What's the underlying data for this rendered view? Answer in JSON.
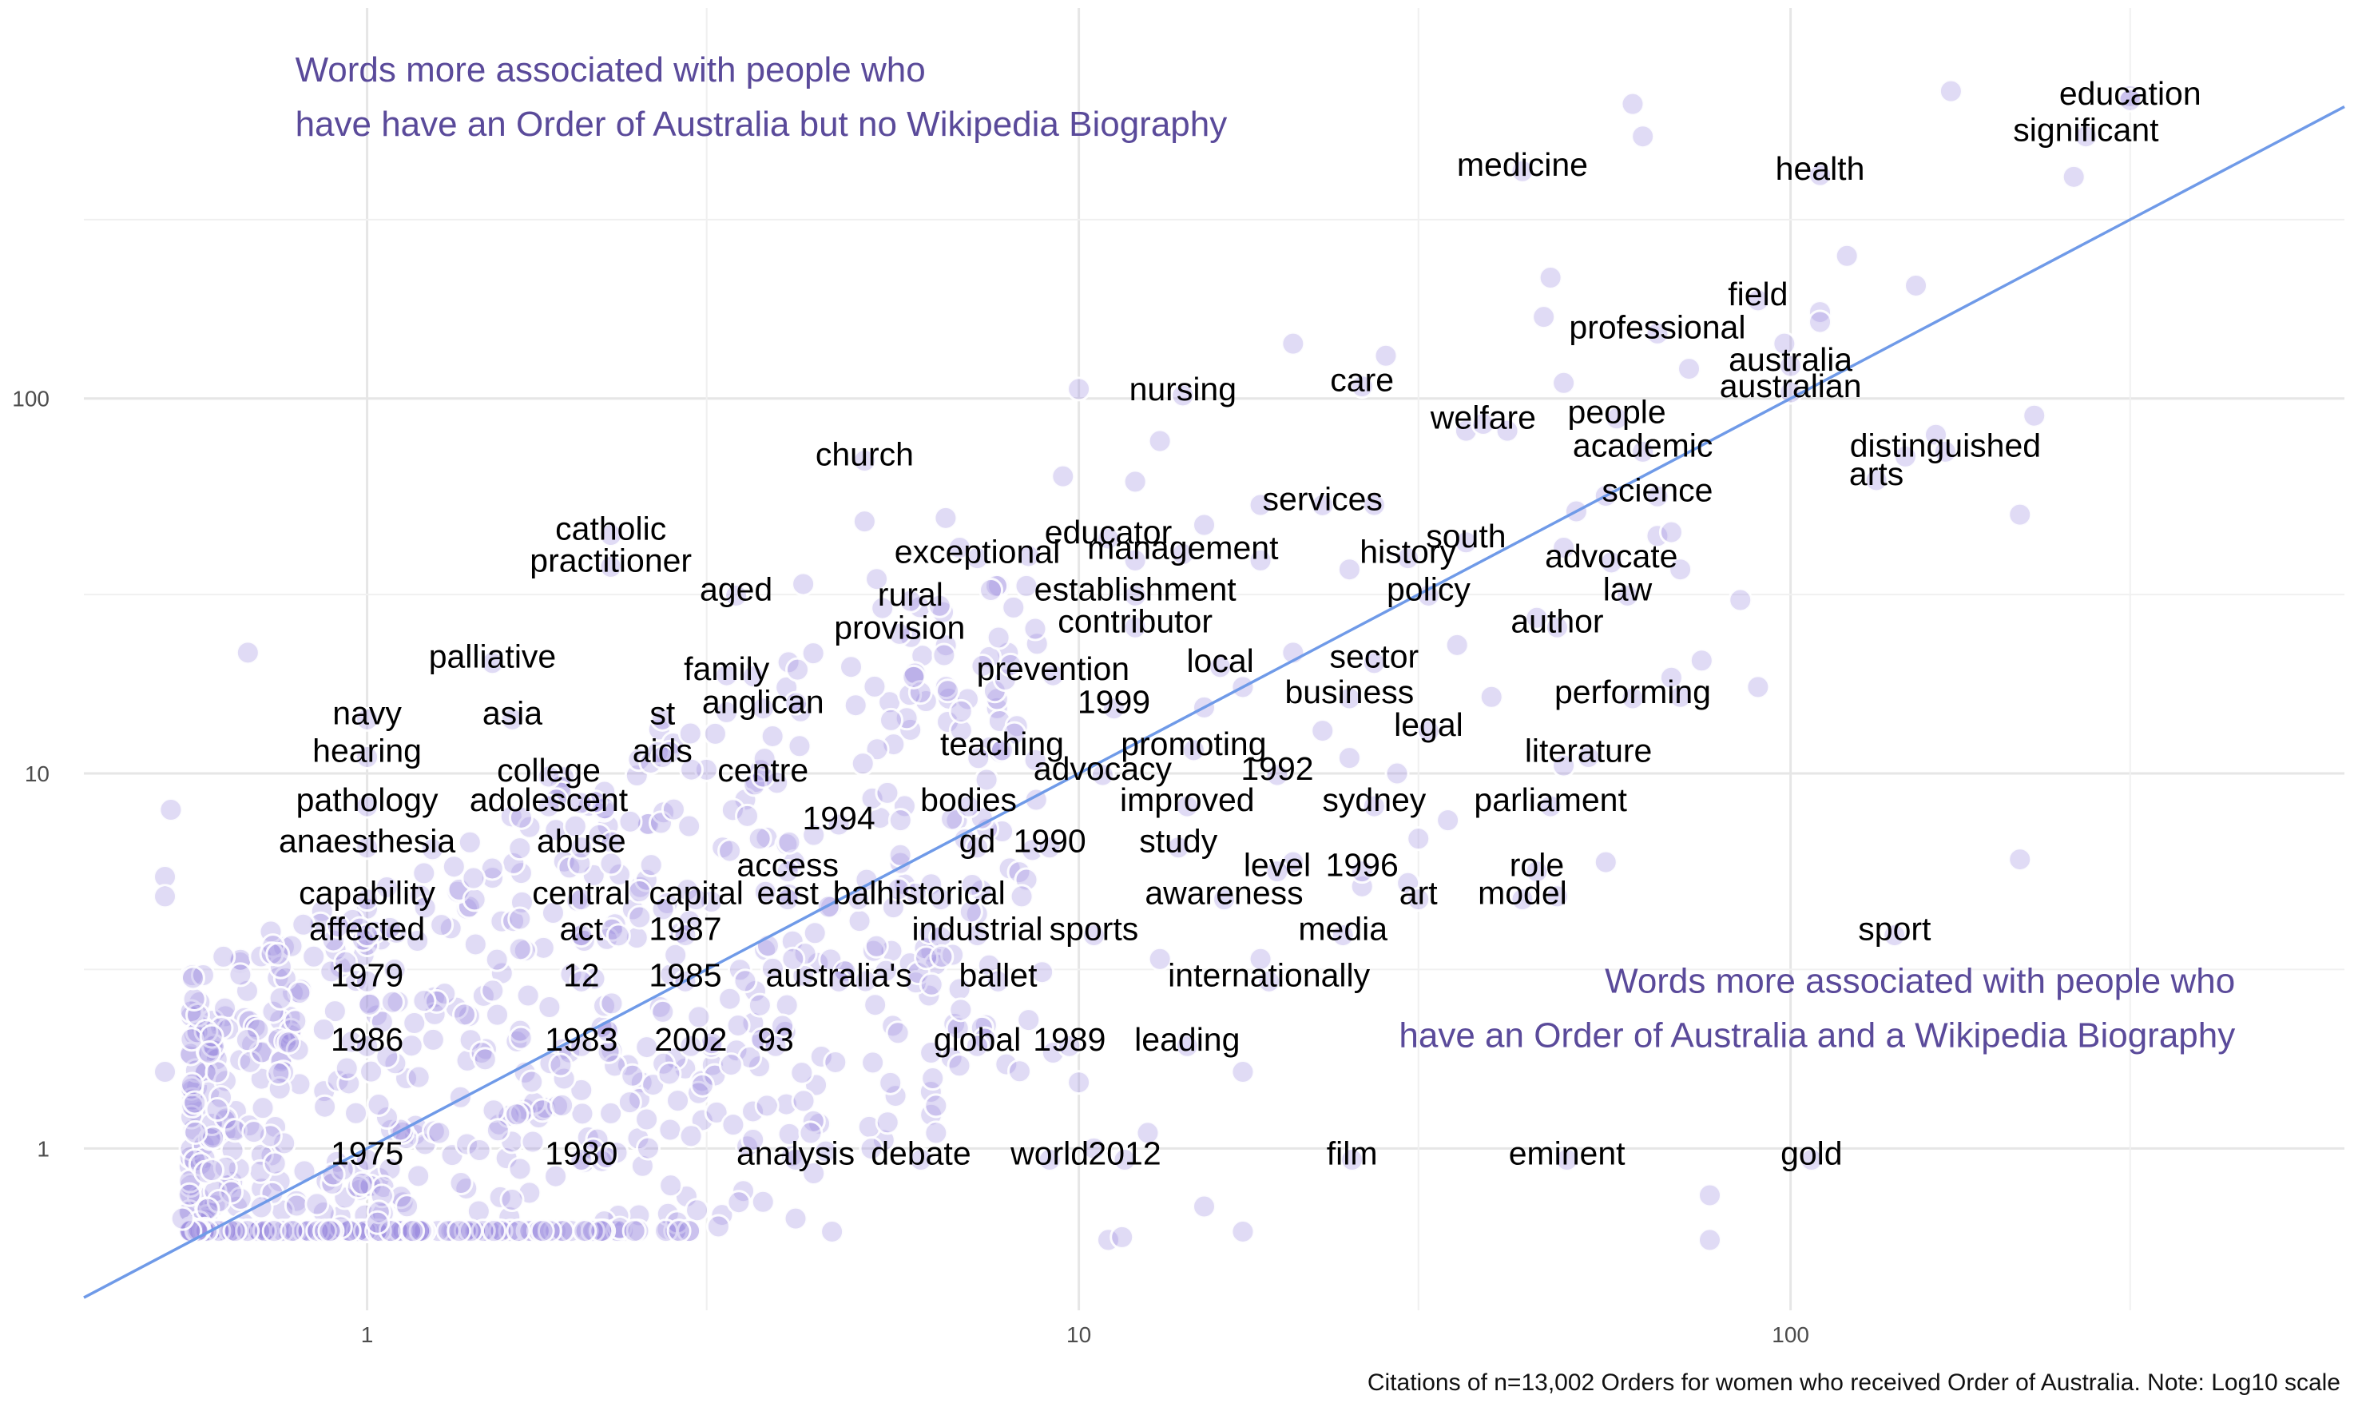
{
  "chart_data": {
    "type": "scatter",
    "x_scale": "log10",
    "y_scale": "log10",
    "xlim": [
      0.4,
      600
    ],
    "ylim": [
      0.37,
      1100
    ],
    "x_ticks": [
      {
        "value": 1,
        "label": "1"
      },
      {
        "value": 10,
        "label": "10"
      },
      {
        "value": 100,
        "label": "100"
      }
    ],
    "y_ticks": [
      {
        "value": 1,
        "label": "1"
      },
      {
        "value": 10,
        "label": "10"
      },
      {
        "value": 100,
        "label": "100"
      }
    ],
    "grid": true,
    "reference_line": "y = x",
    "point_color": "#9e8ee0",
    "line_color": "#6f9ae8",
    "annotation_color": "#5a4a9a",
    "annotations": [
      {
        "lines": [
          "Words more associated with people who",
          "have have an Order of Australia but no Wikipedia Biography"
        ],
        "anchor": [
          1.0,
          700
        ],
        "align": "start"
      },
      {
        "lines": [
          "Words more associated with people who",
          "have an Order of Australia and a Wikipedia Biography"
        ],
        "anchor": [
          380,
          2.6
        ],
        "align": "end"
      }
    ],
    "caption": "Citations of n=13,002 Orders for women who received Order of Australia. Note: Log10 scale",
    "labeled_points": [
      {
        "label": "education",
        "x": 300,
        "y": 650
      },
      {
        "label": "significant",
        "x": 260,
        "y": 520
      },
      {
        "label": "medicine",
        "x": 42,
        "y": 420
      },
      {
        "label": "health",
        "x": 110,
        "y": 410
      },
      {
        "label": "field",
        "x": 90,
        "y": 190
      },
      {
        "label": "professional",
        "x": 65,
        "y": 155
      },
      {
        "label": "australia",
        "x": 100,
        "y": 127
      },
      {
        "label": "australian",
        "x": 100,
        "y": 108
      },
      {
        "label": "nursing",
        "x": 14,
        "y": 106
      },
      {
        "label": "care",
        "x": 25,
        "y": 112
      },
      {
        "label": "welfare",
        "x": 37,
        "y": 89
      },
      {
        "label": "people",
        "x": 57,
        "y": 92
      },
      {
        "label": "academic",
        "x": 62,
        "y": 75
      },
      {
        "label": "distinguished",
        "x": 165,
        "y": 75
      },
      {
        "label": "arts",
        "x": 132,
        "y": 63
      },
      {
        "label": "church",
        "x": 5.0,
        "y": 71
      },
      {
        "label": "science",
        "x": 65,
        "y": 57
      },
      {
        "label": "services",
        "x": 22,
        "y": 54
      },
      {
        "label": "catholic",
        "x": 2.2,
        "y": 45
      },
      {
        "label": "educator",
        "x": 11,
        "y": 44
      },
      {
        "label": "south",
        "x": 35,
        "y": 43
      },
      {
        "label": "practitioner",
        "x": 2.2,
        "y": 37
      },
      {
        "label": "exceptional",
        "x": 7.2,
        "y": 39
      },
      {
        "label": "management",
        "x": 14,
        "y": 40
      },
      {
        "label": "history",
        "x": 29,
        "y": 39
      },
      {
        "label": "advocate",
        "x": 56,
        "y": 38
      },
      {
        "label": "aged",
        "x": 3.3,
        "y": 31
      },
      {
        "label": "rural",
        "x": 5.8,
        "y": 30
      },
      {
        "label": "establishment",
        "x": 12,
        "y": 31
      },
      {
        "label": "policy",
        "x": 31,
        "y": 31
      },
      {
        "label": "law",
        "x": 59,
        "y": 31
      },
      {
        "label": "provision",
        "x": 5.6,
        "y": 24.5
      },
      {
        "label": "contributor",
        "x": 12,
        "y": 25.5
      },
      {
        "label": "author",
        "x": 47,
        "y": 25.5
      },
      {
        "label": "palliative",
        "x": 1.5,
        "y": 20.5
      },
      {
        "label": "family",
        "x": 3.2,
        "y": 19
      },
      {
        "label": "prevention",
        "x": 9.2,
        "y": 19
      },
      {
        "label": "local",
        "x": 15.8,
        "y": 20
      },
      {
        "label": "sector",
        "x": 26,
        "y": 20.5
      },
      {
        "label": "performing",
        "x": 60,
        "y": 16.5
      },
      {
        "label": "navy",
        "x": 1.0,
        "y": 14.5
      },
      {
        "label": "asia",
        "x": 1.6,
        "y": 14.5
      },
      {
        "label": "st",
        "x": 2.6,
        "y": 14.5
      },
      {
        "label": "anglican",
        "x": 3.6,
        "y": 15.5
      },
      {
        "label": "1999",
        "x": 11.2,
        "y": 15.5
      },
      {
        "label": "business",
        "x": 24,
        "y": 16.5
      },
      {
        "label": "legal",
        "x": 31,
        "y": 13.5
      },
      {
        "label": "hearing",
        "x": 1.0,
        "y": 11.5
      },
      {
        "label": "aids",
        "x": 2.6,
        "y": 11.5
      },
      {
        "label": "teaching",
        "x": 7.8,
        "y": 12
      },
      {
        "label": "promoting",
        "x": 14.5,
        "y": 12
      },
      {
        "label": "literature",
        "x": 52,
        "y": 11.5
      },
      {
        "label": "college",
        "x": 1.8,
        "y": 10.2
      },
      {
        "label": "centre",
        "x": 3.6,
        "y": 10.2
      },
      {
        "label": "advocacy",
        "x": 10.8,
        "y": 10.3
      },
      {
        "label": "1992",
        "x": 19,
        "y": 10.3
      },
      {
        "label": "pathology",
        "x": 1.0,
        "y": 8.5
      },
      {
        "label": "adolescent",
        "x": 1.8,
        "y": 8.5
      },
      {
        "label": "bodies",
        "x": 7,
        "y": 8.5
      },
      {
        "label": "improved",
        "x": 14.2,
        "y": 8.5
      },
      {
        "label": "sydney",
        "x": 26,
        "y": 8.5
      },
      {
        "label": "parliament",
        "x": 46,
        "y": 8.5
      },
      {
        "label": "1994",
        "x": 4.6,
        "y": 7.6
      },
      {
        "label": "anaesthesia",
        "x": 1.0,
        "y": 6.6
      },
      {
        "label": "abuse",
        "x": 2.0,
        "y": 6.6
      },
      {
        "label": "gd",
        "x": 7.2,
        "y": 6.6
      },
      {
        "label": "1990",
        "x": 9.1,
        "y": 6.6
      },
      {
        "label": "study",
        "x": 13.8,
        "y": 6.6
      },
      {
        "label": "access",
        "x": 3.9,
        "y": 5.7
      },
      {
        "label": "level",
        "x": 19,
        "y": 5.7
      },
      {
        "label": "1996",
        "x": 25,
        "y": 5.7
      },
      {
        "label": "role",
        "x": 44,
        "y": 5.7
      },
      {
        "label": "capability",
        "x": 1.0,
        "y": 4.8
      },
      {
        "label": "central",
        "x": 2.0,
        "y": 4.8
      },
      {
        "label": "capital",
        "x": 2.9,
        "y": 4.8
      },
      {
        "label": "east",
        "x": 3.9,
        "y": 4.8
      },
      {
        "label": "bali",
        "x": 4.9,
        "y": 4.8
      },
      {
        "label": "historical",
        "x": 6.4,
        "y": 4.8
      },
      {
        "label": "awareness",
        "x": 16,
        "y": 4.8
      },
      {
        "label": "art",
        "x": 30,
        "y": 4.8
      },
      {
        "label": "model",
        "x": 42,
        "y": 4.8
      },
      {
        "label": "affected",
        "x": 1.0,
        "y": 3.85
      },
      {
        "label": "act",
        "x": 2.0,
        "y": 3.85
      },
      {
        "label": "1987",
        "x": 2.8,
        "y": 3.85
      },
      {
        "label": "industrial",
        "x": 7.2,
        "y": 3.85
      },
      {
        "label": "sports",
        "x": 10.5,
        "y": 3.85
      },
      {
        "label": "media",
        "x": 23.5,
        "y": 3.85
      },
      {
        "label": "sport",
        "x": 140,
        "y": 3.85
      },
      {
        "label": "1979",
        "x": 1.0,
        "y": 2.9
      },
      {
        "label": "12",
        "x": 2.0,
        "y": 2.9
      },
      {
        "label": "1985",
        "x": 2.8,
        "y": 2.9
      },
      {
        "label": "australia's",
        "x": 4.6,
        "y": 2.9
      },
      {
        "label": "ballet",
        "x": 7.7,
        "y": 2.9
      },
      {
        "label": "internationally",
        "x": 18.5,
        "y": 2.9
      },
      {
        "label": "1986",
        "x": 1.0,
        "y": 1.95
      },
      {
        "label": "1983",
        "x": 2.0,
        "y": 1.95
      },
      {
        "label": "2002",
        "x": 2.85,
        "y": 1.95
      },
      {
        "label": "93",
        "x": 3.75,
        "y": 1.95
      },
      {
        "label": "global",
        "x": 7.2,
        "y": 1.95
      },
      {
        "label": "1989",
        "x": 9.7,
        "y": 1.95
      },
      {
        "label": "leading",
        "x": 14.2,
        "y": 1.95
      },
      {
        "label": "1975",
        "x": 1.0,
        "y": 0.97
      },
      {
        "label": "1980",
        "x": 2.0,
        "y": 0.97
      },
      {
        "label": "analysis",
        "x": 4.0,
        "y": 0.97
      },
      {
        "label": "debate",
        "x": 6.0,
        "y": 0.97
      },
      {
        "label": "world",
        "x": 9.1,
        "y": 0.97
      },
      {
        "label": "2012",
        "x": 11.6,
        "y": 0.97
      },
      {
        "label": "film",
        "x": 24.2,
        "y": 0.97
      },
      {
        "label": "eminent",
        "x": 48.5,
        "y": 0.97
      },
      {
        "label": "gold",
        "x": 107,
        "y": 0.97
      }
    ],
    "highlight_points": [
      [
        168,
        660
      ],
      [
        300,
        640
      ],
      [
        60,
        610
      ],
      [
        62,
        500
      ],
      [
        250,
        390
      ],
      [
        120,
        240
      ],
      [
        150,
        200
      ],
      [
        46,
        210
      ],
      [
        45,
        165
      ],
      [
        27,
        130
      ],
      [
        20,
        140
      ],
      [
        110,
        170
      ],
      [
        110,
        160
      ],
      [
        98,
        140
      ],
      [
        72,
        120
      ],
      [
        48,
        110
      ],
      [
        10,
        106
      ],
      [
        35,
        82
      ],
      [
        40,
        82
      ],
      [
        220,
        90
      ],
      [
        160,
        80
      ],
      [
        145,
        70
      ],
      [
        9.5,
        62
      ],
      [
        12,
        60
      ],
      [
        13,
        77
      ],
      [
        210,
        49
      ],
      [
        50,
        50
      ],
      [
        18,
        52
      ],
      [
        26,
        52
      ],
      [
        5.0,
        47
      ],
      [
        6.5,
        48
      ],
      [
        15,
        46
      ],
      [
        65,
        43
      ],
      [
        68,
        44
      ],
      [
        55,
        55
      ],
      [
        48,
        40
      ],
      [
        6.8,
        40
      ],
      [
        8.5,
        38
      ],
      [
        12,
        37
      ],
      [
        18,
        37
      ],
      [
        24,
        35
      ],
      [
        70,
        35
      ],
      [
        4.1,
        32
      ],
      [
        5.2,
        33
      ],
      [
        85,
        29
      ],
      [
        44,
        26
      ],
      [
        34,
        22
      ],
      [
        75,
        20
      ],
      [
        68,
        18
      ],
      [
        90,
        17
      ],
      [
        70,
        16
      ],
      [
        38,
        16
      ],
      [
        20,
        21
      ],
      [
        15,
        15
      ],
      [
        17,
        17
      ],
      [
        22,
        13
      ],
      [
        24,
        11
      ],
      [
        28,
        10
      ],
      [
        48,
        10.5
      ],
      [
        33,
        7.5
      ],
      [
        30,
        6.7
      ],
      [
        55,
        5.8
      ],
      [
        20,
        5.8
      ],
      [
        25,
        5.0
      ],
      [
        29,
        5.1
      ],
      [
        47,
        4.7
      ],
      [
        210,
        5.9
      ],
      [
        18,
        3.2
      ],
      [
        13,
        3.2
      ],
      [
        17,
        1.6
      ],
      [
        15,
        0.7
      ],
      [
        17,
        0.6
      ],
      [
        77,
        0.75
      ],
      [
        77,
        0.57
      ],
      [
        11,
        0.57
      ],
      [
        11.5,
        0.58
      ],
      [
        10.5,
        1.0
      ],
      [
        12.5,
        1.1
      ],
      [
        10,
        1.5
      ],
      [
        9.2,
        1.8
      ],
      [
        8.5,
        2.2
      ],
      [
        6.2,
        1.8
      ],
      [
        6.3,
        1.3
      ],
      [
        6.3,
        1.1
      ],
      [
        4.2,
        1.1
      ],
      [
        3.6,
        0.72
      ],
      [
        4.0,
        0.65
      ],
      [
        4.5,
        0.6
      ],
      [
        0.68,
        21
      ],
      [
        0.53,
        8.0
      ],
      [
        0.52,
        5.3
      ],
      [
        0.52,
        4.7
      ],
      [
        0.52,
        1.6
      ],
      [
        0.55,
        0.65
      ],
      [
        0.6,
        1.8
      ]
    ]
  }
}
